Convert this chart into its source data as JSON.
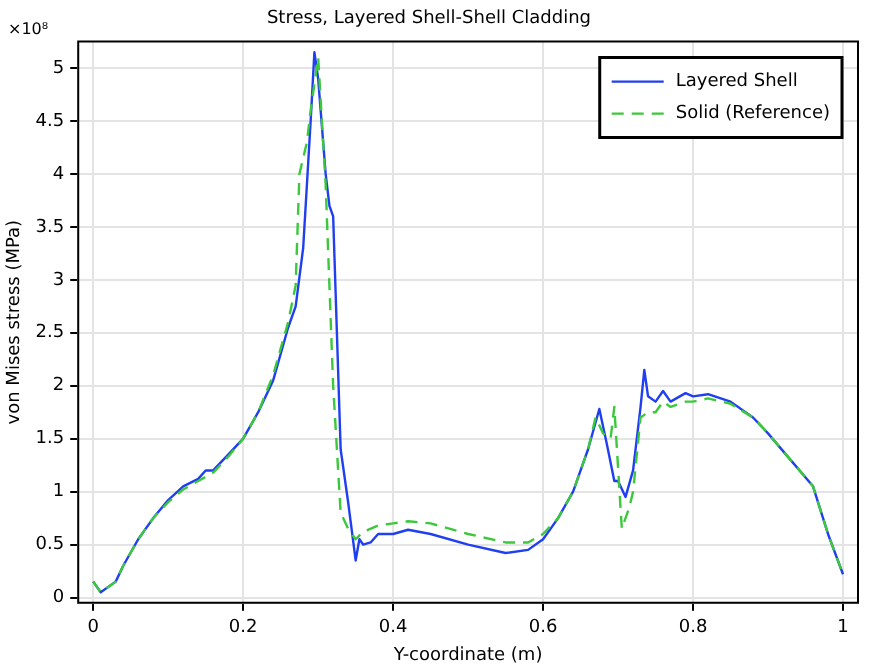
{
  "chart_data": {
    "type": "line",
    "title": "Stress, Layered Shell-Shell Cladding",
    "xlabel": "Y-coordinate (m)",
    "ylabel": "von Mises stress (MPa)",
    "annotations": [
      "×10⁸"
    ],
    "xlim": [
      -0.02,
      1.02
    ],
    "ylim": [
      -0.05,
      5.25
    ],
    "xticks": [
      0,
      0.2,
      0.4,
      0.6,
      0.8,
      1
    ],
    "yticks": [
      0,
      0.5,
      1,
      1.5,
      2,
      2.5,
      3,
      3.5,
      4,
      4.5,
      5
    ],
    "grid": true,
    "legend": "top right",
    "marker": "none",
    "series": [
      {
        "name": "Layered Shell",
        "color": "#1f3ff0",
        "line_style": "solid",
        "x": [
          0,
          0.01,
          0.03,
          0.04,
          0.06,
          0.08,
          0.1,
          0.12,
          0.14,
          0.15,
          0.16,
          0.18,
          0.2,
          0.22,
          0.24,
          0.26,
          0.27,
          0.28,
          0.29,
          0.295,
          0.3,
          0.31,
          0.315,
          0.32,
          0.33,
          0.34,
          0.35,
          0.355,
          0.36,
          0.37,
          0.38,
          0.4,
          0.42,
          0.45,
          0.5,
          0.55,
          0.58,
          0.6,
          0.62,
          0.64,
          0.66,
          0.675,
          0.685,
          0.695,
          0.7,
          0.71,
          0.72,
          0.73,
          0.735,
          0.74,
          0.75,
          0.76,
          0.77,
          0.79,
          0.8,
          0.82,
          0.85,
          0.88,
          0.9,
          0.93,
          0.96,
          0.98,
          1
        ],
        "values": [
          0.15,
          0.05,
          0.15,
          0.3,
          0.55,
          0.75,
          0.92,
          1.05,
          1.12,
          1.2,
          1.2,
          1.35,
          1.5,
          1.75,
          2.05,
          2.55,
          2.75,
          3.3,
          4.5,
          5.15,
          4.9,
          4.0,
          3.7,
          3.6,
          1.4,
          0.9,
          0.35,
          0.55,
          0.5,
          0.52,
          0.6,
          0.6,
          0.64,
          0.6,
          0.5,
          0.42,
          0.45,
          0.55,
          0.75,
          1.0,
          1.4,
          1.78,
          1.45,
          1.1,
          1.1,
          0.95,
          1.2,
          1.8,
          2.15,
          1.9,
          1.85,
          1.95,
          1.85,
          1.93,
          1.9,
          1.92,
          1.85,
          1.7,
          1.55,
          1.3,
          1.05,
          0.6,
          0.22
        ]
      },
      {
        "name": "Solid (Reference)",
        "color": "#3cc83c",
        "line_style": "dashed",
        "x": [
          0,
          0.01,
          0.03,
          0.04,
          0.06,
          0.08,
          0.1,
          0.12,
          0.14,
          0.16,
          0.18,
          0.2,
          0.22,
          0.24,
          0.26,
          0.27,
          0.275,
          0.285,
          0.29,
          0.3,
          0.31,
          0.32,
          0.33,
          0.34,
          0.35,
          0.36,
          0.38,
          0.4,
          0.42,
          0.45,
          0.5,
          0.55,
          0.58,
          0.6,
          0.62,
          0.64,
          0.66,
          0.67,
          0.68,
          0.69,
          0.695,
          0.705,
          0.715,
          0.72,
          0.73,
          0.74,
          0.75,
          0.76,
          0.77,
          0.79,
          0.8,
          0.82,
          0.85,
          0.88,
          0.9,
          0.93,
          0.96,
          0.98,
          1
        ],
        "values": [
          0.15,
          0.05,
          0.15,
          0.3,
          0.55,
          0.75,
          0.9,
          1.02,
          1.1,
          1.18,
          1.33,
          1.5,
          1.75,
          2.1,
          2.6,
          2.95,
          4.0,
          4.3,
          4.6,
          5.1,
          3.9,
          2.0,
          0.8,
          0.65,
          0.55,
          0.62,
          0.68,
          0.7,
          0.72,
          0.7,
          0.6,
          0.52,
          0.52,
          0.6,
          0.75,
          1.0,
          1.4,
          1.7,
          1.55,
          1.5,
          1.8,
          0.65,
          0.85,
          1.0,
          1.7,
          1.75,
          1.75,
          1.85,
          1.8,
          1.85,
          1.85,
          1.88,
          1.83,
          1.7,
          1.55,
          1.3,
          1.05,
          0.6,
          0.22
        ]
      }
    ]
  }
}
